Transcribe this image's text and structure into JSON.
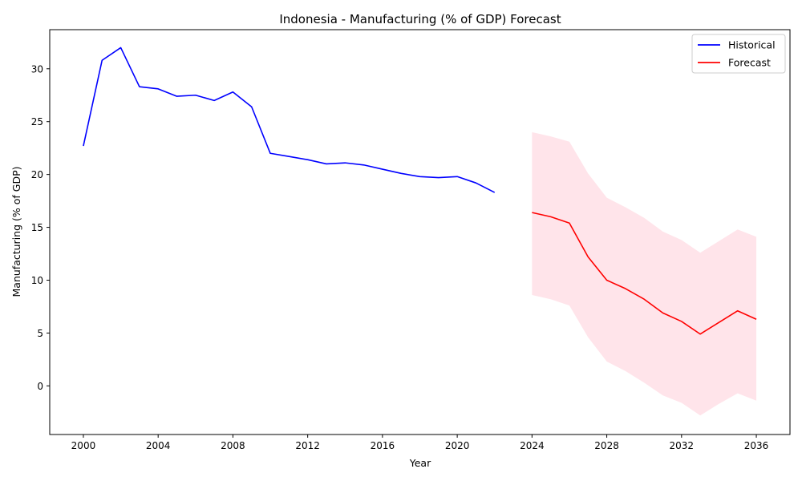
{
  "chart_data": {
    "type": "line",
    "title": "Indonesia - Manufacturing (% of GDP) Forecast",
    "xlabel": "Year",
    "ylabel": "Manufacturing (% of GDP)",
    "xlim": [
      1998.2,
      2037.8
    ],
    "ylim": [
      -4.6,
      33.7
    ],
    "xticks": [
      2000,
      2004,
      2008,
      2012,
      2016,
      2020,
      2024,
      2028,
      2032,
      2036
    ],
    "yticks": [
      0,
      5,
      10,
      15,
      20,
      25,
      30
    ],
    "grid": false,
    "legend_position": "top-right",
    "series": [
      {
        "name": "Historical",
        "color": "#0000ff",
        "x": [
          2000,
          2001,
          2002,
          2003,
          2004,
          2005,
          2006,
          2007,
          2008,
          2009,
          2010,
          2011,
          2012,
          2013,
          2014,
          2015,
          2016,
          2017,
          2018,
          2019,
          2020,
          2021,
          2022
        ],
        "y": [
          22.7,
          30.8,
          32.0,
          28.3,
          28.1,
          27.4,
          27.5,
          27.0,
          27.8,
          26.4,
          22.0,
          21.7,
          21.4,
          21.0,
          21.1,
          20.9,
          20.5,
          20.1,
          19.8,
          19.7,
          19.8,
          19.2,
          18.3
        ]
      },
      {
        "name": "Forecast",
        "color": "#ff0000",
        "x": [
          2024,
          2025,
          2026,
          2027,
          2028,
          2029,
          2030,
          2031,
          2032,
          2033,
          2034,
          2035,
          2036
        ],
        "y": [
          16.4,
          16.0,
          15.4,
          12.2,
          10.0,
          9.2,
          8.2,
          6.9,
          6.1,
          4.9,
          6.0,
          7.1,
          6.3
        ],
        "band": {
          "color": "#ffe4ea",
          "lower": [
            8.6,
            8.2,
            7.6,
            4.6,
            2.3,
            1.4,
            0.3,
            -0.9,
            -1.6,
            -2.8,
            -1.7,
            -0.7,
            -1.4
          ],
          "upper": [
            24.0,
            23.6,
            23.1,
            20.1,
            17.8,
            16.9,
            15.9,
            14.6,
            13.8,
            12.6,
            13.7,
            14.8,
            14.1
          ]
        }
      }
    ]
  }
}
